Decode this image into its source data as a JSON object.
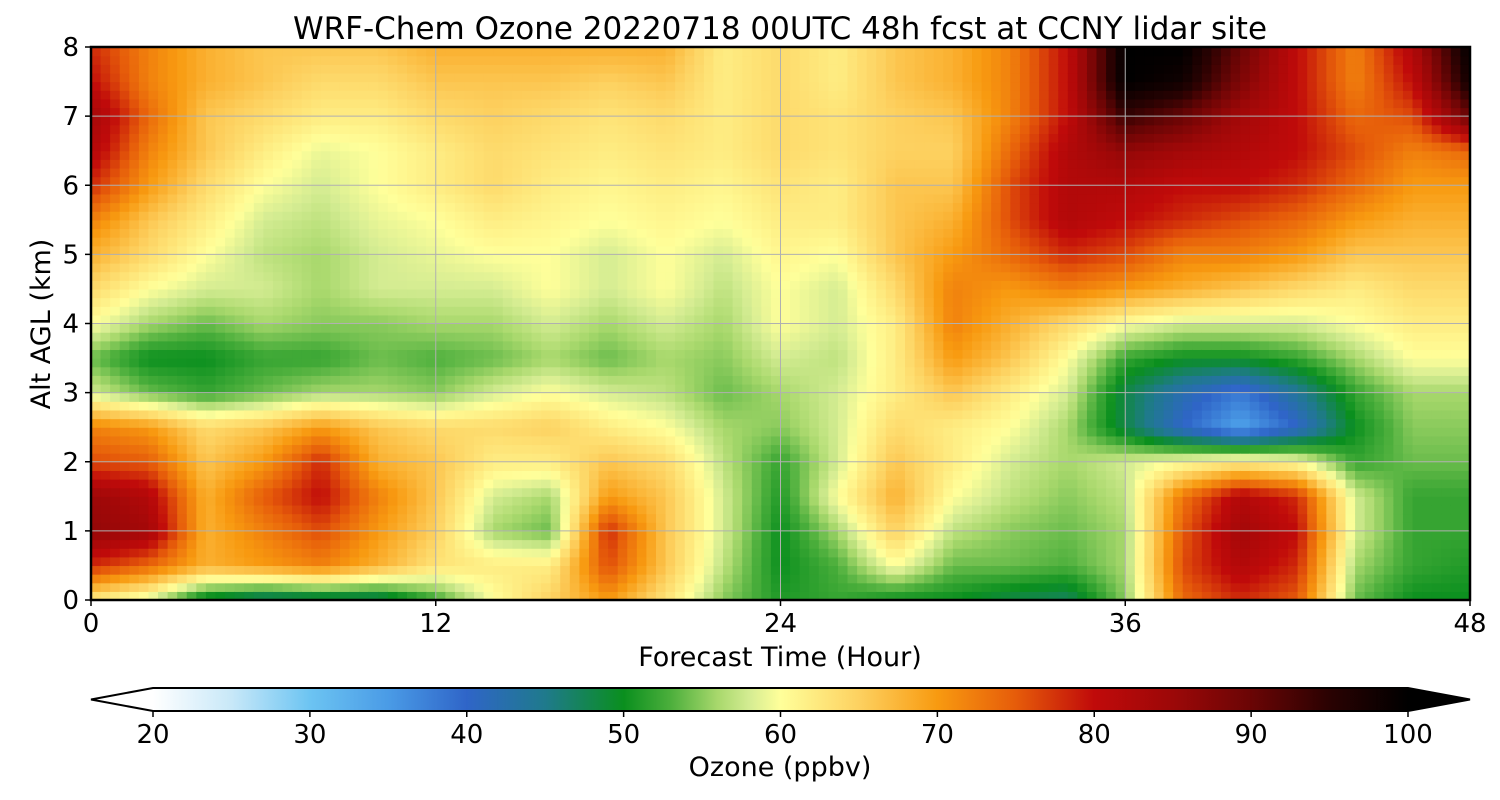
{
  "chart_data": {
    "type": "heatmap",
    "title": "WRF-Chem Ozone  20220718 00UTC 48h fcst at CCNY lidar site",
    "xlabel": "Forecast Time (Hour)",
    "ylabel": "Alt AGL (km)",
    "xlim": [
      0,
      48
    ],
    "ylim": [
      0,
      8
    ],
    "x_ticks": [
      "0",
      "12",
      "24",
      "36",
      "48"
    ],
    "y_ticks": [
      "0",
      "1",
      "2",
      "3",
      "4",
      "5",
      "6",
      "7",
      "8"
    ],
    "grid": true,
    "x": [
      0,
      2,
      4,
      6,
      8,
      10,
      12,
      14,
      16,
      18,
      20,
      22,
      24,
      26,
      28,
      30,
      32,
      34,
      36,
      38,
      40,
      42,
      44,
      46,
      48
    ],
    "y": [
      0,
      0.5,
      1,
      1.5,
      2,
      2.5,
      3,
      3.5,
      4,
      4.5,
      5,
      5.5,
      6,
      6.5,
      7,
      7.5,
      8
    ],
    "z": [
      [
        62,
        58,
        48,
        45,
        46,
        46,
        52,
        60,
        65,
        70,
        63,
        55,
        51,
        52,
        50,
        50,
        48,
        47,
        55,
        74,
        78,
        75,
        54,
        50,
        50
      ],
      [
        78,
        74,
        68,
        70,
        72,
        68,
        63,
        62,
        62,
        76,
        66,
        57,
        50,
        53,
        60,
        54,
        54,
        53,
        56,
        76,
        82,
        78,
        56,
        52,
        51
      ],
      [
        86,
        84,
        68,
        72,
        76,
        70,
        65,
        56,
        54,
        78,
        66,
        58,
        50,
        56,
        65,
        57,
        55,
        54,
        56,
        75,
        84,
        80,
        58,
        52,
        52
      ],
      [
        85,
        82,
        68,
        75,
        80,
        72,
        66,
        58,
        56,
        70,
        66,
        58,
        51,
        60,
        68,
        60,
        57,
        55,
        57,
        73,
        82,
        78,
        58,
        52,
        52
      ],
      [
        76,
        75,
        66,
        70,
        78,
        68,
        66,
        62,
        62,
        66,
        64,
        57,
        52,
        58,
        66,
        62,
        58,
        56,
        58,
        60,
        62,
        60,
        52,
        54,
        54
      ],
      [
        72,
        70,
        64,
        66,
        70,
        66,
        64,
        64,
        65,
        62,
        60,
        56,
        55,
        58,
        64,
        62,
        60,
        56,
        48,
        40,
        34,
        40,
        50,
        55,
        55
      ],
      [
        58,
        54,
        52,
        54,
        56,
        56,
        55,
        58,
        60,
        58,
        57,
        54,
        56,
        58,
        62,
        66,
        62,
        58,
        48,
        42,
        38,
        44,
        52,
        56,
        56
      ],
      [
        54,
        50,
        50,
        52,
        52,
        54,
        53,
        54,
        56,
        54,
        56,
        55,
        58,
        57,
        62,
        70,
        66,
        60,
        52,
        50,
        50,
        52,
        56,
        60,
        60
      ],
      [
        60,
        56,
        54,
        56,
        55,
        55,
        56,
        56,
        58,
        56,
        58,
        56,
        60,
        58,
        62,
        72,
        68,
        64,
        60,
        58,
        58,
        58,
        60,
        62,
        62
      ],
      [
        64,
        60,
        58,
        58,
        56,
        58,
        58,
        58,
        60,
        58,
        60,
        57,
        60,
        58,
        64,
        72,
        70,
        72,
        70,
        68,
        66,
        64,
        62,
        64,
        64
      ],
      [
        68,
        64,
        60,
        57,
        56,
        58,
        59,
        60,
        60,
        58,
        60,
        58,
        61,
        60,
        66,
        70,
        74,
        78,
        76,
        72,
        72,
        70,
        66,
        66,
        66
      ],
      [
        72,
        66,
        62,
        58,
        57,
        59,
        60,
        62,
        61,
        60,
        61,
        60,
        62,
        62,
        66,
        68,
        76,
        82,
        80,
        78,
        76,
        74,
        70,
        68,
        68
      ],
      [
        78,
        70,
        64,
        60,
        58,
        60,
        62,
        64,
        62,
        61,
        62,
        61,
        63,
        62,
        66,
        66,
        76,
        82,
        82,
        80,
        80,
        78,
        74,
        70,
        70
      ],
      [
        82,
        72,
        66,
        62,
        59,
        60,
        62,
        64,
        63,
        62,
        63,
        62,
        64,
        63,
        65,
        65,
        74,
        82,
        86,
        84,
        82,
        80,
        76,
        72,
        74
      ],
      [
        84,
        74,
        66,
        64,
        62,
        62,
        64,
        65,
        64,
        63,
        64,
        62,
        64,
        63,
        65,
        66,
        72,
        80,
        94,
        90,
        84,
        80,
        74,
        76,
        90
      ],
      [
        80,
        72,
        68,
        66,
        64,
        64,
        66,
        66,
        66,
        65,
        66,
        62,
        64,
        62,
        66,
        68,
        72,
        80,
        100,
        98,
        88,
        80,
        72,
        80,
        98
      ],
      [
        78,
        72,
        68,
        66,
        66,
        66,
        68,
        68,
        68,
        68,
        68,
        62,
        64,
        62,
        66,
        68,
        72,
        80,
        100,
        100,
        90,
        80,
        72,
        82,
        100
      ]
    ],
    "colorbar": {
      "label": "Ozone  (ppbv)",
      "ticks": [
        "20",
        "30",
        "40",
        "50",
        "60",
        "70",
        "80",
        "90",
        "100"
      ],
      "min": 20,
      "max": 100,
      "extend": "both",
      "stops": [
        {
          "v": 20,
          "c": "#ffffff"
        },
        {
          "v": 25,
          "c": "#c8e8f8"
        },
        {
          "v": 30,
          "c": "#6cc4f2"
        },
        {
          "v": 35,
          "c": "#4a9be6"
        },
        {
          "v": 40,
          "c": "#2f65c8"
        },
        {
          "v": 45,
          "c": "#1f7a8c"
        },
        {
          "v": 50,
          "c": "#0a8f1e"
        },
        {
          "v": 53,
          "c": "#4caf3c"
        },
        {
          "v": 56,
          "c": "#a8d86c"
        },
        {
          "v": 58,
          "c": "#d4ec92"
        },
        {
          "v": 60,
          "c": "#ffff9a"
        },
        {
          "v": 65,
          "c": "#fdd160"
        },
        {
          "v": 70,
          "c": "#f89a10"
        },
        {
          "v": 75,
          "c": "#e65c0a"
        },
        {
          "v": 80,
          "c": "#c00a0a"
        },
        {
          "v": 85,
          "c": "#9c0808"
        },
        {
          "v": 90,
          "c": "#6a0505"
        },
        {
          "v": 95,
          "c": "#2a0202"
        },
        {
          "v": 100,
          "c": "#000000"
        }
      ]
    }
  }
}
